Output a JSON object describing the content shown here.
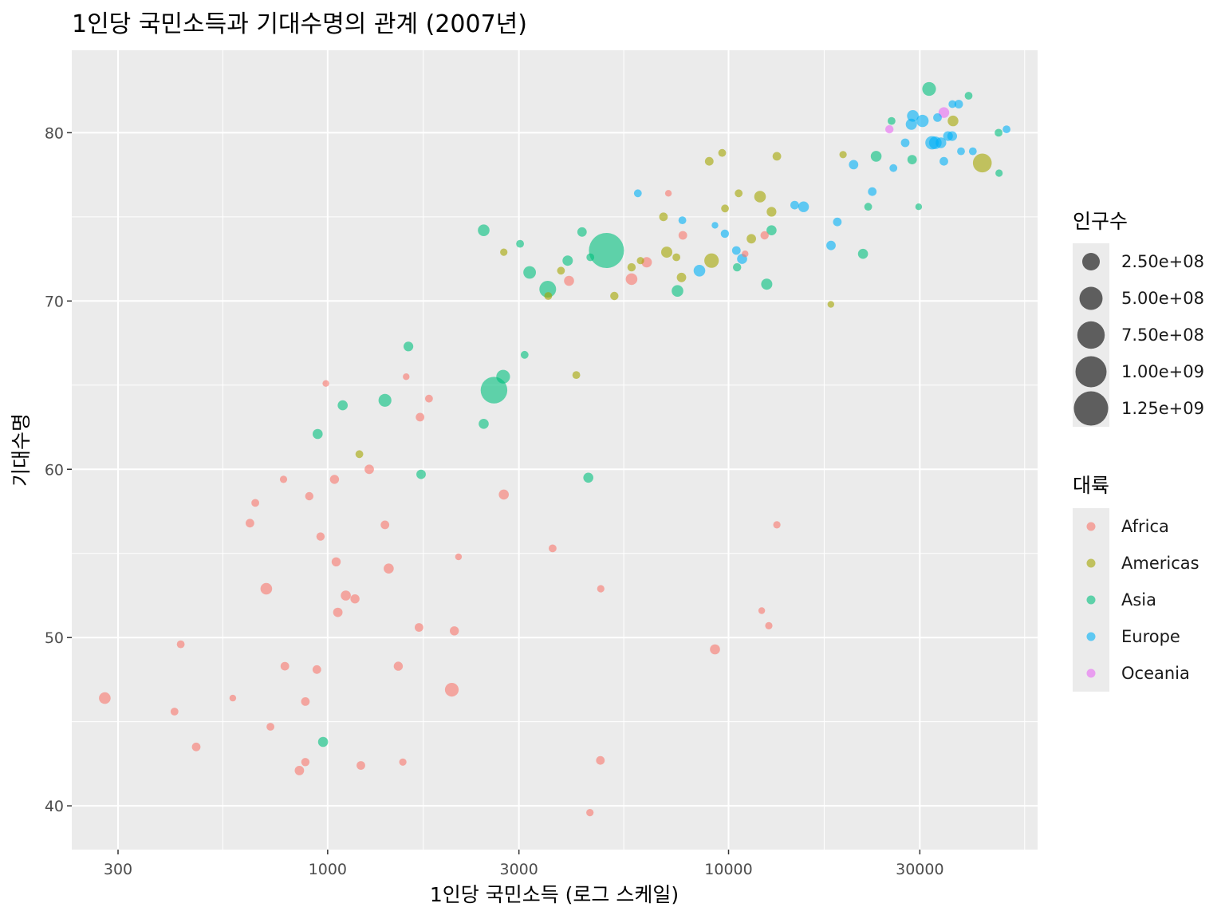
{
  "chart_data": {
    "type": "scatter",
    "title": "1인당 국민소득과 기대수명의 관계 (2007년)",
    "xlabel": "1인당 국민소득 (로그 스케일)",
    "ylabel": "기대수명",
    "x_scale": "log10",
    "xlim": [
      230,
      59000
    ],
    "ylim": [
      37.4,
      84.9
    ],
    "x_ticks": [
      300,
      1000,
      3000,
      10000,
      30000
    ],
    "x_tick_labels": [
      "300",
      "1000",
      "3000",
      "10000",
      "30000"
    ],
    "y_ticks": [
      40,
      50,
      60,
      70,
      80
    ],
    "y_tick_labels": [
      "40",
      "50",
      "60",
      "70",
      "80"
    ],
    "grid": true,
    "point_alpha": 0.6,
    "legend_placement": "right",
    "size_legend": {
      "title": "인구수",
      "values": [
        250000000,
        500000000,
        750000000,
        1000000000,
        1250000000
      ],
      "labels": [
        "2.50e+08",
        "5.00e+08",
        "7.50e+08",
        "1.00e+09",
        "1.25e+09"
      ]
    },
    "color_legend": {
      "title": "대륙",
      "entries": [
        {
          "name": "Africa",
          "color": "#F8766D"
        },
        {
          "name": "Americas",
          "color": "#A3A500"
        },
        {
          "name": "Asia",
          "color": "#00BF7D"
        },
        {
          "name": "Europe",
          "color": "#00B0F6"
        },
        {
          "name": "Oceania",
          "color": "#E76BF3"
        }
      ]
    },
    "series": [
      {
        "name": "Africa",
        "points": [
          [
            278,
            46.4,
            80000000
          ],
          [
            415,
            45.6,
            20000000
          ],
          [
            430,
            49.6,
            20000000
          ],
          [
            470,
            43.5,
            30000000
          ],
          [
            580,
            46.4,
            10000000
          ],
          [
            640,
            56.8,
            30000000
          ],
          [
            660,
            58.0,
            20000000
          ],
          [
            703,
            52.9,
            80000000
          ],
          [
            720,
            44.7,
            20000000
          ],
          [
            776,
            59.4,
            15000000
          ],
          [
            782,
            48.3,
            30000000
          ],
          [
            850,
            42.1,
            40000000
          ],
          [
            880,
            42.6,
            25000000
          ],
          [
            880,
            46.2,
            30000000
          ],
          [
            900,
            58.4,
            25000000
          ],
          [
            940,
            48.1,
            30000000
          ],
          [
            960,
            56.0,
            25000000
          ],
          [
            990,
            65.1,
            10000000
          ],
          [
            1040,
            59.4,
            35000000
          ],
          [
            1050,
            54.5,
            35000000
          ],
          [
            1060,
            51.5,
            40000000
          ],
          [
            1110,
            52.5,
            50000000
          ],
          [
            1170,
            52.3,
            35000000
          ],
          [
            1210,
            42.4,
            30000000
          ],
          [
            1270,
            60.0,
            40000000
          ],
          [
            1390,
            56.7,
            30000000
          ],
          [
            1420,
            54.1,
            50000000
          ],
          [
            1500,
            48.3,
            35000000
          ],
          [
            1540,
            42.6,
            15000000
          ],
          [
            1570,
            65.5,
            10000000
          ],
          [
            1690,
            50.6,
            30000000
          ],
          [
            1700,
            63.1,
            30000000
          ],
          [
            1790,
            64.2,
            20000000
          ],
          [
            2040,
            46.9,
            130000000
          ],
          [
            2070,
            50.4,
            35000000
          ],
          [
            2120,
            54.8,
            10000000
          ],
          [
            2750,
            58.5,
            50000000
          ],
          [
            3640,
            55.3,
            20000000
          ],
          [
            4000,
            71.2,
            50000000
          ],
          [
            4510,
            39.6,
            15000000
          ],
          [
            4790,
            42.7,
            30000000
          ],
          [
            4800,
            52.9,
            15000000
          ],
          [
            5730,
            71.3,
            80000000
          ],
          [
            6250,
            72.3,
            55000000
          ],
          [
            7080,
            76.4,
            10000000
          ],
          [
            7690,
            73.9,
            30000000
          ],
          [
            9250,
            49.3,
            50000000
          ],
          [
            11000,
            72.8,
            10000000
          ],
          [
            12100,
            51.6,
            10000000
          ],
          [
            12300,
            73.9,
            25000000
          ],
          [
            12600,
            50.7,
            15000000
          ],
          [
            13200,
            56.7,
            15000000
          ]
        ]
      },
      {
        "name": "Americas",
        "points": [
          [
            1200,
            60.9,
            20000000
          ],
          [
            2750,
            72.9,
            15000000
          ],
          [
            3550,
            70.3,
            20000000
          ],
          [
            3820,
            71.8,
            20000000
          ],
          [
            4170,
            65.6,
            20000000
          ],
          [
            5190,
            70.3,
            25000000
          ],
          [
            5730,
            72.0,
            25000000
          ],
          [
            6030,
            72.4,
            15000000
          ],
          [
            6880,
            75.0,
            30000000
          ],
          [
            7010,
            72.9,
            70000000
          ],
          [
            7410,
            72.6,
            20000000
          ],
          [
            7630,
            71.4,
            40000000
          ],
          [
            8950,
            78.3,
            30000000
          ],
          [
            9070,
            72.4,
            150000000
          ],
          [
            9640,
            78.8,
            20000000
          ],
          [
            9800,
            75.5,
            20000000
          ],
          [
            10600,
            76.4,
            20000000
          ],
          [
            11400,
            73.7,
            40000000
          ],
          [
            11980,
            76.2,
            80000000
          ],
          [
            12800,
            75.3,
            45000000
          ],
          [
            13200,
            78.6,
            30000000
          ],
          [
            18000,
            69.8,
            10000000
          ],
          [
            19300,
            78.7,
            15000000
          ],
          [
            36300,
            80.7,
            60000000
          ],
          [
            42950,
            78.2,
            300000000
          ]
        ]
      },
      {
        "name": "Asia",
        "points": [
          [
            944,
            62.1,
            50000000
          ],
          [
            974,
            43.8,
            50000000
          ],
          [
            1090,
            63.8,
            50000000
          ],
          [
            1390,
            64.1,
            110000000
          ],
          [
            1590,
            67.3,
            45000000
          ],
          [
            1710,
            59.7,
            40000000
          ],
          [
            2450,
            62.7,
            50000000
          ],
          [
            2600,
            64.7,
            700000000
          ],
          [
            2740,
            65.5,
            130000000
          ],
          [
            2450,
            74.2,
            80000000
          ],
          [
            3020,
            73.4,
            20000000
          ],
          [
            3100,
            66.8,
            20000000
          ],
          [
            3190,
            71.7,
            100000000
          ],
          [
            3540,
            70.7,
            220000000
          ],
          [
            3970,
            72.4,
            55000000
          ],
          [
            4310,
            74.1,
            40000000
          ],
          [
            4520,
            72.6,
            20000000
          ],
          [
            4960,
            73.0,
            1320000000
          ],
          [
            4470,
            59.5,
            50000000
          ],
          [
            7460,
            70.6,
            80000000
          ],
          [
            10500,
            72.0,
            25000000
          ],
          [
            12450,
            71.0,
            70000000
          ],
          [
            12800,
            74.2,
            50000000
          ],
          [
            21650,
            72.8,
            50000000
          ],
          [
            22300,
            75.6,
            20000000
          ],
          [
            23350,
            78.6,
            65000000
          ],
          [
            25500,
            80.7,
            20000000
          ],
          [
            28700,
            78.4,
            40000000
          ],
          [
            29800,
            75.6,
            10000000
          ],
          [
            31650,
            82.6,
            130000000
          ],
          [
            39700,
            82.2,
            20000000
          ],
          [
            47150,
            80.0,
            20000000
          ],
          [
            47300,
            77.6,
            15000000
          ]
        ]
      },
      {
        "name": "Europe",
        "points": [
          [
            5940,
            76.4,
            20000000
          ],
          [
            7670,
            74.8,
            20000000
          ],
          [
            8460,
            71.8,
            80000000
          ],
          [
            9250,
            74.5,
            10000000
          ],
          [
            9790,
            74.0,
            25000000
          ],
          [
            10460,
            73.0,
            30000000
          ],
          [
            10810,
            72.5,
            50000000
          ],
          [
            14620,
            75.7,
            30000000
          ],
          [
            15390,
            75.6,
            60000000
          ],
          [
            18010,
            73.3,
            40000000
          ],
          [
            18680,
            74.7,
            30000000
          ],
          [
            20510,
            78.1,
            40000000
          ],
          [
            22830,
            76.5,
            30000000
          ],
          [
            25770,
            77.9,
            20000000
          ],
          [
            27580,
            79.4,
            30000000
          ],
          [
            28570,
            80.5,
            70000000
          ],
          [
            28820,
            81.0,
            80000000
          ],
          [
            30470,
            80.7,
            95000000
          ],
          [
            32170,
            79.4,
            120000000
          ],
          [
            32800,
            79.4,
            100000000
          ],
          [
            33200,
            80.9,
            30000000
          ],
          [
            33860,
            79.4,
            60000000
          ],
          [
            34440,
            78.3,
            30000000
          ],
          [
            35280,
            79.8,
            45000000
          ],
          [
            36130,
            79.8,
            45000000
          ],
          [
            36180,
            81.7,
            20000000
          ],
          [
            37510,
            81.7,
            30000000
          ],
          [
            38000,
            78.9,
            20000000
          ],
          [
            40680,
            78.9,
            20000000
          ],
          [
            49360,
            80.2,
            20000000
          ]
        ]
      },
      {
        "name": "Oceania",
        "points": [
          [
            25190,
            80.2,
            25000000
          ],
          [
            34440,
            81.2,
            60000000
          ]
        ]
      }
    ]
  }
}
